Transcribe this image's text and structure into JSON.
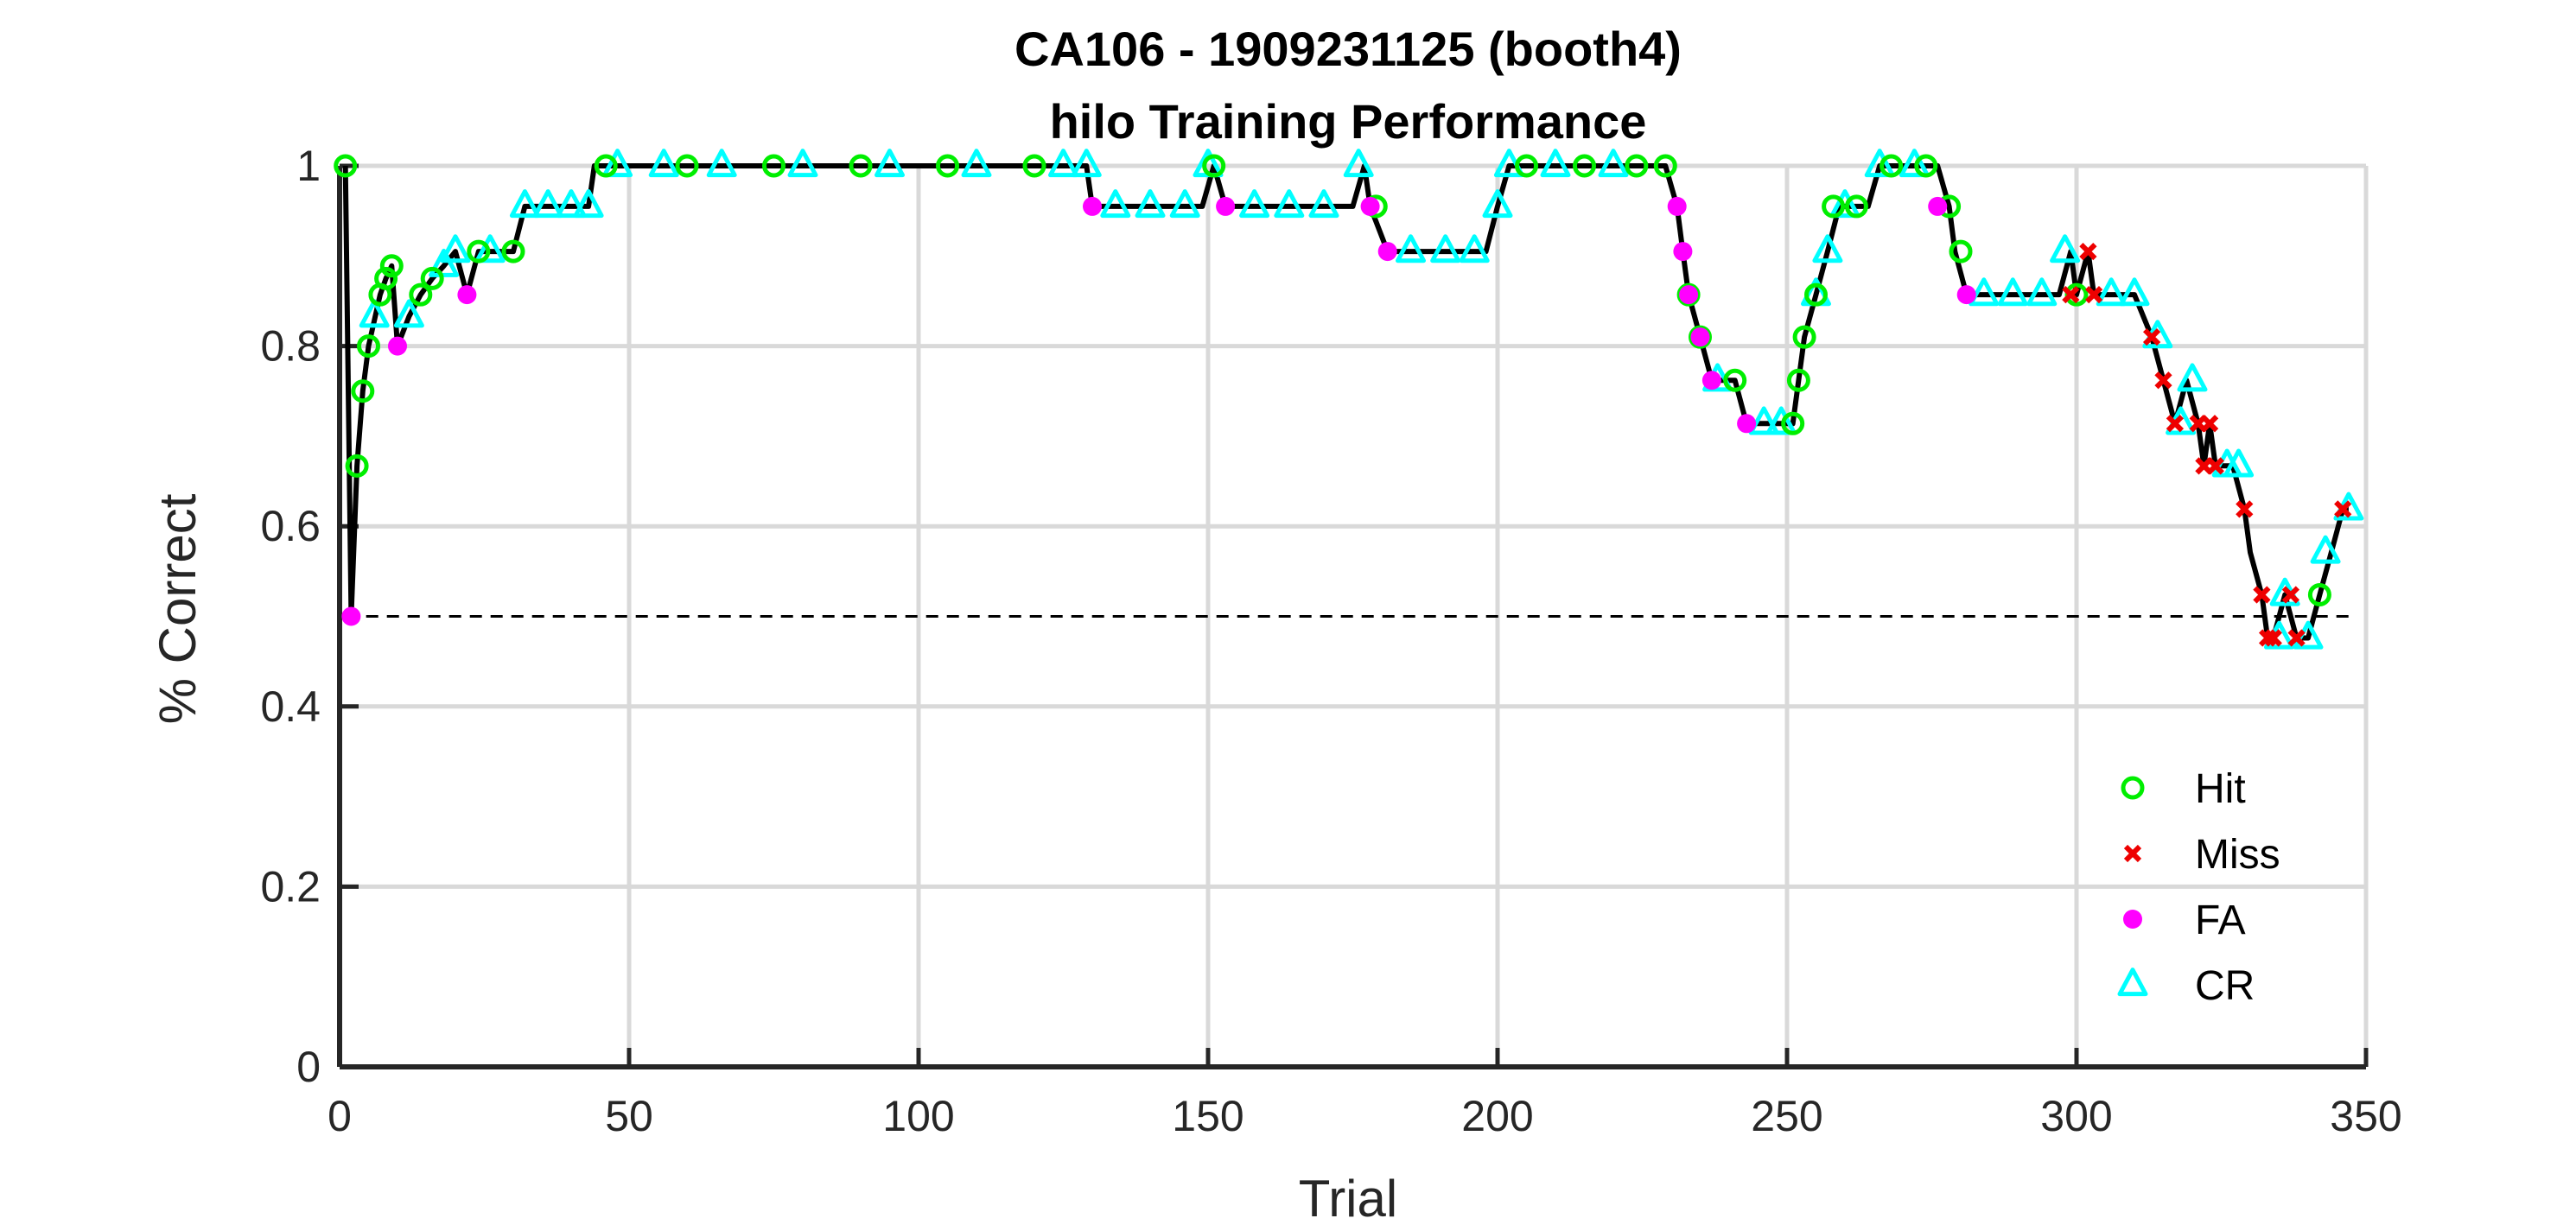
{
  "chart_data": {
    "type": "line",
    "title": "CA106 - 1909231125 (booth4)",
    "subtitle": "hilo Training Performance",
    "xlabel": "Trial",
    "ylabel": "% Correct",
    "xlim": [
      0,
      350
    ],
    "ylim": [
      0,
      1
    ],
    "xticks": [
      0,
      50,
      100,
      150,
      200,
      250,
      300,
      350
    ],
    "yticks": [
      0,
      0.2,
      0.4,
      0.6,
      0.8,
      1
    ],
    "xtick_labels": [
      "0",
      "50",
      "100",
      "150",
      "200",
      "250",
      "300",
      "350"
    ],
    "ytick_labels": [
      "0",
      "0.2",
      "0.4",
      "0.6",
      "0.8",
      "1"
    ],
    "grid": true,
    "chance_line": 0.5,
    "legend_position": "bottom-right",
    "legend": [
      "Hit",
      "Miss",
      "FA",
      "CR"
    ],
    "colors": {
      "Hit": "#00ee00",
      "Miss": "#ee0000",
      "FA": "#ff00ff",
      "CR": "#00ffff",
      "line": "#000000",
      "grid": "#d9d9d9",
      "axis": "#262626"
    },
    "keypoints": [
      [
        1,
        1.0
      ],
      [
        2,
        0.5
      ],
      [
        3,
        0.667
      ],
      [
        4,
        0.75
      ],
      [
        5,
        0.8
      ],
      [
        7,
        0.857
      ],
      [
        8,
        0.875
      ],
      [
        9,
        0.889
      ],
      [
        10,
        0.8
      ],
      [
        12,
        0.833
      ],
      [
        14,
        0.857
      ],
      [
        16,
        0.875
      ],
      [
        18,
        0.889
      ],
      [
        20,
        0.905
      ],
      [
        22,
        0.857
      ],
      [
        24,
        0.905
      ],
      [
        30,
        0.905
      ],
      [
        32,
        0.955
      ],
      [
        43,
        0.955
      ],
      [
        44,
        1.0
      ],
      [
        129,
        1.0
      ],
      [
        130,
        0.955
      ],
      [
        149,
        0.955
      ],
      [
        151,
        1.0
      ],
      [
        153,
        0.955
      ],
      [
        175,
        0.955
      ],
      [
        177,
        1.0
      ],
      [
        178,
        0.955
      ],
      [
        181,
        0.905
      ],
      [
        198,
        0.905
      ],
      [
        200,
        0.955
      ],
      [
        202,
        1.0
      ],
      [
        229,
        1.0
      ],
      [
        231,
        0.955
      ],
      [
        232,
        0.905
      ],
      [
        233,
        0.857
      ],
      [
        235,
        0.81
      ],
      [
        237,
        0.762
      ],
      [
        241,
        0.762
      ],
      [
        243,
        0.714
      ],
      [
        251,
        0.714
      ],
      [
        252,
        0.762
      ],
      [
        253,
        0.81
      ],
      [
        255,
        0.857
      ],
      [
        257,
        0.905
      ],
      [
        259,
        0.955
      ],
      [
        264,
        0.955
      ],
      [
        266,
        1.0
      ],
      [
        276,
        1.0
      ],
      [
        278,
        0.955
      ],
      [
        279,
        0.905
      ],
      [
        281,
        0.857
      ],
      [
        297,
        0.857
      ],
      [
        299,
        0.905
      ],
      [
        300,
        0.857
      ],
      [
        302,
        0.905
      ],
      [
        303,
        0.857
      ],
      [
        310,
        0.857
      ],
      [
        313,
        0.81
      ],
      [
        315,
        0.762
      ],
      [
        317,
        0.714
      ],
      [
        319,
        0.762
      ],
      [
        321,
        0.714
      ],
      [
        322,
        0.667
      ],
      [
        323,
        0.714
      ],
      [
        324,
        0.667
      ],
      [
        327,
        0.667
      ],
      [
        329,
        0.619
      ],
      [
        330,
        0.571
      ],
      [
        332,
        0.524
      ],
      [
        333,
        0.476
      ],
      [
        334,
        0.476
      ],
      [
        336,
        0.524
      ],
      [
        338,
        0.476
      ],
      [
        340,
        0.476
      ],
      [
        342,
        0.524
      ],
      [
        344,
        0.571
      ],
      [
        346,
        0.619
      ],
      [
        347,
        0.619
      ]
    ],
    "markers": {
      "Hit": [
        [
          1,
          1.0
        ],
        [
          3,
          0.667
        ],
        [
          4,
          0.75
        ],
        [
          5,
          0.8
        ],
        [
          7,
          0.857
        ],
        [
          8,
          0.875
        ],
        [
          9,
          0.889
        ],
        [
          14,
          0.857
        ],
        [
          16,
          0.875
        ],
        [
          24,
          0.905
        ],
        [
          30,
          0.905
        ],
        [
          46,
          1.0
        ],
        [
          60,
          1.0
        ],
        [
          75,
          1.0
        ],
        [
          90,
          1.0
        ],
        [
          105,
          1.0
        ],
        [
          120,
          1.0
        ],
        [
          151,
          1.0
        ],
        [
          179,
          0.955
        ],
        [
          205,
          1.0
        ],
        [
          215,
          1.0
        ],
        [
          224,
          1.0
        ],
        [
          229,
          1.0
        ],
        [
          233,
          0.857
        ],
        [
          235,
          0.81
        ],
        [
          241,
          0.762
        ],
        [
          251,
          0.714
        ],
        [
          252,
          0.762
        ],
        [
          253,
          0.81
        ],
        [
          255,
          0.857
        ],
        [
          258,
          0.955
        ],
        [
          262,
          0.955
        ],
        [
          268,
          1.0
        ],
        [
          274,
          1.0
        ],
        [
          278,
          0.955
        ],
        [
          280,
          0.905
        ],
        [
          300,
          0.857
        ],
        [
          342,
          0.524
        ]
      ],
      "Miss": [
        [
          299,
          0.857
        ],
        [
          302,
          0.905
        ],
        [
          303,
          0.857
        ],
        [
          313,
          0.81
        ],
        [
          315,
          0.762
        ],
        [
          317,
          0.714
        ],
        [
          321,
          0.714
        ],
        [
          322,
          0.667
        ],
        [
          323,
          0.714
        ],
        [
          324,
          0.667
        ],
        [
          329,
          0.619
        ],
        [
          332,
          0.524
        ],
        [
          333,
          0.476
        ],
        [
          334,
          0.476
        ],
        [
          337,
          0.524
        ],
        [
          338,
          0.476
        ],
        [
          346,
          0.619
        ]
      ],
      "FA": [
        [
          2,
          0.5
        ],
        [
          10,
          0.8
        ],
        [
          22,
          0.857
        ],
        [
          130,
          0.955
        ],
        [
          153,
          0.955
        ],
        [
          178,
          0.955
        ],
        [
          181,
          0.905
        ],
        [
          231,
          0.955
        ],
        [
          232,
          0.905
        ],
        [
          233,
          0.857
        ],
        [
          235,
          0.81
        ],
        [
          237,
          0.762
        ],
        [
          243,
          0.714
        ],
        [
          276,
          0.955
        ],
        [
          281,
          0.857
        ]
      ],
      "CR": [
        [
          6,
          0.833
        ],
        [
          12,
          0.833
        ],
        [
          18,
          0.889
        ],
        [
          20,
          0.905
        ],
        [
          26,
          0.905
        ],
        [
          32,
          0.955
        ],
        [
          36,
          0.955
        ],
        [
          40,
          0.955
        ],
        [
          43,
          0.955
        ],
        [
          48,
          1.0
        ],
        [
          56,
          1.0
        ],
        [
          66,
          1.0
        ],
        [
          80,
          1.0
        ],
        [
          95,
          1.0
        ],
        [
          110,
          1.0
        ],
        [
          125,
          1.0
        ],
        [
          129,
          1.0
        ],
        [
          134,
          0.955
        ],
        [
          140,
          0.955
        ],
        [
          146,
          0.955
        ],
        [
          150,
          1.0
        ],
        [
          158,
          0.955
        ],
        [
          164,
          0.955
        ],
        [
          170,
          0.955
        ],
        [
          176,
          1.0
        ],
        [
          185,
          0.905
        ],
        [
          191,
          0.905
        ],
        [
          196,
          0.905
        ],
        [
          200,
          0.955
        ],
        [
          202,
          1.0
        ],
        [
          210,
          1.0
        ],
        [
          220,
          1.0
        ],
        [
          238,
          0.762
        ],
        [
          246,
          0.714
        ],
        [
          249,
          0.714
        ],
        [
          255,
          0.857
        ],
        [
          257,
          0.905
        ],
        [
          260,
          0.955
        ],
        [
          266,
          1.0
        ],
        [
          272,
          1.0
        ],
        [
          284,
          0.857
        ],
        [
          289,
          0.857
        ],
        [
          294,
          0.857
        ],
        [
          298,
          0.905
        ],
        [
          306,
          0.857
        ],
        [
          310,
          0.857
        ],
        [
          314,
          0.81
        ],
        [
          318,
          0.714
        ],
        [
          320,
          0.762
        ],
        [
          326,
          0.667
        ],
        [
          328,
          0.667
        ],
        [
          335,
          0.476
        ],
        [
          336,
          0.524
        ],
        [
          340,
          0.476
        ],
        [
          343,
          0.571
        ],
        [
          347,
          0.619
        ]
      ]
    }
  }
}
